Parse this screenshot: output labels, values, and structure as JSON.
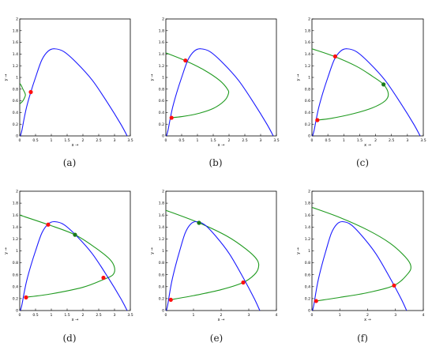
{
  "figure": {
    "panels": [
      {
        "caption": "(a)",
        "xlabel": "x →",
        "ylabel": "y →",
        "xlim": [
          0,
          3.5
        ],
        "ylim": [
          0,
          2
        ],
        "xticks": [
          "0",
          "0.5",
          "1",
          "1.5",
          "2",
          "2.5",
          "3",
          "3.5"
        ],
        "yticks": [
          "0",
          "0.2",
          "0.4",
          "0.6",
          "0.8",
          "1",
          "1.2",
          "1.4",
          "1.6",
          "1.8",
          "2"
        ],
        "blue_curve": [
          [
            0.02,
            0
          ],
          [
            0.07,
            0.1
          ],
          [
            0.14,
            0.3
          ],
          [
            0.22,
            0.5
          ],
          [
            0.35,
            0.75
          ],
          [
            0.5,
            1.0
          ],
          [
            0.7,
            1.3
          ],
          [
            0.9,
            1.45
          ],
          [
            1.1,
            1.49
          ],
          [
            1.4,
            1.44
          ],
          [
            1.8,
            1.25
          ],
          [
            2.3,
            0.95
          ],
          [
            2.8,
            0.55
          ],
          [
            3.2,
            0.2
          ],
          [
            3.4,
            0
          ]
        ],
        "green_curve": [
          [
            0.0,
            0.9
          ],
          [
            0.05,
            0.86
          ],
          [
            0.1,
            0.8
          ],
          [
            0.15,
            0.75
          ],
          [
            0.18,
            0.7
          ],
          [
            0.15,
            0.65
          ],
          [
            0.1,
            0.6
          ],
          [
            0.05,
            0.57
          ],
          [
            0.0,
            0.55
          ]
        ],
        "points": [
          {
            "x": 0.35,
            "y": 0.75,
            "color": "red"
          }
        ]
      },
      {
        "caption": "(b)",
        "xlabel": "x →",
        "ylabel": "y →",
        "xlim": [
          0,
          3.5
        ],
        "ylim": [
          0,
          2
        ],
        "xticks": [
          "0",
          "0.5",
          "1",
          "1.5",
          "2",
          "2.5",
          "3",
          "3.5"
        ],
        "yticks": [
          "0",
          "0.2",
          "0.4",
          "0.6",
          "0.8",
          "1",
          "1.2",
          "1.4",
          "1.6",
          "1.8",
          "2"
        ],
        "blue_curve": [
          [
            0.02,
            0
          ],
          [
            0.07,
            0.1
          ],
          [
            0.14,
            0.3
          ],
          [
            0.22,
            0.5
          ],
          [
            0.35,
            0.75
          ],
          [
            0.5,
            1.0
          ],
          [
            0.7,
            1.3
          ],
          [
            0.9,
            1.45
          ],
          [
            1.1,
            1.49
          ],
          [
            1.4,
            1.44
          ],
          [
            1.8,
            1.25
          ],
          [
            2.3,
            0.95
          ],
          [
            2.8,
            0.55
          ],
          [
            3.2,
            0.2
          ],
          [
            3.4,
            0
          ]
        ],
        "green_curve": [
          [
            0.0,
            1.42
          ],
          [
            0.6,
            1.29
          ],
          [
            1.2,
            1.13
          ],
          [
            1.7,
            0.95
          ],
          [
            1.95,
            0.8
          ],
          [
            1.98,
            0.72
          ],
          [
            1.85,
            0.6
          ],
          [
            1.5,
            0.47
          ],
          [
            1.0,
            0.38
          ],
          [
            0.5,
            0.33
          ],
          [
            0.15,
            0.31
          ]
        ],
        "points": [
          {
            "x": 0.62,
            "y": 1.29,
            "color": "red"
          },
          {
            "x": 0.18,
            "y": 0.31,
            "color": "red"
          }
        ]
      },
      {
        "caption": "(c)",
        "xlabel": "x →",
        "ylabel": "y →",
        "xlim": [
          0,
          3.5
        ],
        "ylim": [
          0,
          2
        ],
        "xticks": [
          "0",
          "0.5",
          "1",
          "1.5",
          "2",
          "2.5",
          "3",
          "3.5"
        ],
        "yticks": [
          "0",
          "0.2",
          "0.4",
          "0.6",
          "0.8",
          "1",
          "1.2",
          "1.4",
          "1.6",
          "1.8",
          "2"
        ],
        "blue_curve": [
          [
            0.02,
            0
          ],
          [
            0.07,
            0.1
          ],
          [
            0.14,
            0.3
          ],
          [
            0.22,
            0.5
          ],
          [
            0.35,
            0.75
          ],
          [
            0.5,
            1.0
          ],
          [
            0.7,
            1.3
          ],
          [
            0.9,
            1.45
          ],
          [
            1.1,
            1.49
          ],
          [
            1.4,
            1.44
          ],
          [
            1.8,
            1.25
          ],
          [
            2.3,
            0.95
          ],
          [
            2.8,
            0.55
          ],
          [
            3.2,
            0.2
          ],
          [
            3.4,
            0
          ]
        ],
        "green_curve": [
          [
            0.0,
            1.49
          ],
          [
            0.7,
            1.36
          ],
          [
            1.4,
            1.19
          ],
          [
            1.9,
            1.02
          ],
          [
            2.25,
            0.88
          ],
          [
            2.4,
            0.72
          ],
          [
            2.3,
            0.6
          ],
          [
            1.9,
            0.48
          ],
          [
            1.3,
            0.38
          ],
          [
            0.6,
            0.3
          ],
          [
            0.15,
            0.27
          ]
        ],
        "points": [
          {
            "x": 0.73,
            "y": 1.36,
            "color": "red"
          },
          {
            "x": 2.25,
            "y": 0.88,
            "color": "green"
          },
          {
            "x": 0.17,
            "y": 0.27,
            "color": "red"
          }
        ]
      },
      {
        "caption": "(d)",
        "xlabel": "x →",
        "ylabel": "y →",
        "xlim": [
          0,
          3.5
        ],
        "ylim": [
          0,
          2
        ],
        "xticks": [
          "0",
          "0.5",
          "1",
          "1.5",
          "2",
          "2.5",
          "3",
          "3.5"
        ],
        "yticks": [
          "0",
          "0.2",
          "0.4",
          "0.6",
          "0.8",
          "1",
          "1.2",
          "1.4",
          "1.6",
          "1.8",
          "2"
        ],
        "blue_curve": [
          [
            0.02,
            0
          ],
          [
            0.07,
            0.1
          ],
          [
            0.14,
            0.3
          ],
          [
            0.22,
            0.5
          ],
          [
            0.35,
            0.75
          ],
          [
            0.5,
            1.0
          ],
          [
            0.7,
            1.3
          ],
          [
            0.9,
            1.45
          ],
          [
            1.1,
            1.49
          ],
          [
            1.4,
            1.44
          ],
          [
            1.8,
            1.25
          ],
          [
            2.3,
            0.95
          ],
          [
            2.8,
            0.55
          ],
          [
            3.2,
            0.2
          ],
          [
            3.4,
            0
          ]
        ],
        "green_curve": [
          [
            0.0,
            1.6
          ],
          [
            0.9,
            1.44
          ],
          [
            1.75,
            1.27
          ],
          [
            2.4,
            1.05
          ],
          [
            2.85,
            0.86
          ],
          [
            3.0,
            0.72
          ],
          [
            2.95,
            0.6
          ],
          [
            2.65,
            0.52
          ],
          [
            2.0,
            0.39
          ],
          [
            1.0,
            0.28
          ],
          [
            0.15,
            0.22
          ]
        ],
        "points": [
          {
            "x": 0.9,
            "y": 1.44,
            "color": "red"
          },
          {
            "x": 1.75,
            "y": 1.27,
            "color": "green"
          },
          {
            "x": 2.65,
            "y": 0.55,
            "color": "red"
          },
          {
            "x": 0.2,
            "y": 0.22,
            "color": "red"
          }
        ]
      },
      {
        "caption": "(e)",
        "xlabel": "x →",
        "ylabel": "y →",
        "xlim": [
          0,
          4
        ],
        "ylim": [
          0,
          2
        ],
        "xticks": [
          "0",
          "1",
          "2",
          "3",
          "4"
        ],
        "yticks": [
          "0",
          "0.2",
          "0.4",
          "0.6",
          "0.8",
          "1",
          "1.2",
          "1.4",
          "1.6",
          "1.8",
          "2"
        ],
        "blue_curve": [
          [
            0.02,
            0
          ],
          [
            0.07,
            0.1
          ],
          [
            0.14,
            0.3
          ],
          [
            0.22,
            0.5
          ],
          [
            0.35,
            0.75
          ],
          [
            0.5,
            1.0
          ],
          [
            0.7,
            1.3
          ],
          [
            0.9,
            1.45
          ],
          [
            1.1,
            1.49
          ],
          [
            1.4,
            1.44
          ],
          [
            1.8,
            1.25
          ],
          [
            2.3,
            0.95
          ],
          [
            2.8,
            0.55
          ],
          [
            3.2,
            0.2
          ],
          [
            3.4,
            0
          ]
        ],
        "green_curve": [
          [
            0.0,
            1.68
          ],
          [
            1.2,
            1.47
          ],
          [
            2.2,
            1.25
          ],
          [
            2.9,
            1.03
          ],
          [
            3.3,
            0.85
          ],
          [
            3.35,
            0.72
          ],
          [
            3.2,
            0.6
          ],
          [
            2.8,
            0.47
          ],
          [
            2.0,
            0.35
          ],
          [
            1.0,
            0.25
          ],
          [
            0.15,
            0.18
          ]
        ],
        "points": [
          {
            "x": 1.2,
            "y": 1.47,
            "color": "green"
          },
          {
            "x": 2.8,
            "y": 0.47,
            "color": "red"
          },
          {
            "x": 0.18,
            "y": 0.18,
            "color": "red"
          }
        ]
      },
      {
        "caption": "(f)",
        "xlabel": "x →",
        "ylabel": "y →",
        "xlim": [
          0,
          4
        ],
        "ylim": [
          0,
          2
        ],
        "xticks": [
          "0",
          "1",
          "2",
          "3",
          "4"
        ],
        "yticks": [
          "0",
          "0.2",
          "0.4",
          "0.6",
          "0.8",
          "1",
          "1.2",
          "1.4",
          "1.6",
          "1.8",
          "2"
        ],
        "blue_curve": [
          [
            0.02,
            0
          ],
          [
            0.07,
            0.1
          ],
          [
            0.14,
            0.3
          ],
          [
            0.22,
            0.5
          ],
          [
            0.35,
            0.75
          ],
          [
            0.5,
            1.0
          ],
          [
            0.7,
            1.3
          ],
          [
            0.9,
            1.45
          ],
          [
            1.1,
            1.49
          ],
          [
            1.4,
            1.44
          ],
          [
            1.8,
            1.25
          ],
          [
            2.3,
            0.95
          ],
          [
            2.8,
            0.55
          ],
          [
            3.2,
            0.2
          ],
          [
            3.4,
            0
          ]
        ],
        "green_curve": [
          [
            0.0,
            1.73
          ],
          [
            1.0,
            1.56
          ],
          [
            2.0,
            1.35
          ],
          [
            2.8,
            1.13
          ],
          [
            3.35,
            0.9
          ],
          [
            3.55,
            0.75
          ],
          [
            3.45,
            0.62
          ],
          [
            2.95,
            0.42
          ],
          [
            2.0,
            0.3
          ],
          [
            1.0,
            0.22
          ],
          [
            0.15,
            0.16
          ]
        ],
        "points": [
          {
            "x": 2.95,
            "y": 0.42,
            "color": "red"
          },
          {
            "x": 0.15,
            "y": 0.16,
            "color": "red"
          }
        ]
      }
    ],
    "colors": {
      "blue": "#1a1aff",
      "green": "#1f9a1f",
      "red": "#ff1010",
      "point_green": "#1a7a1a",
      "axis": "#000000"
    }
  }
}
